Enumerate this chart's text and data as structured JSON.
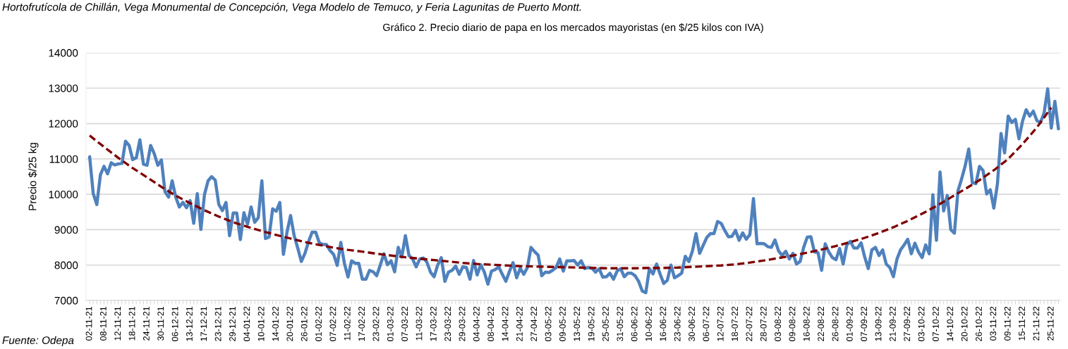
{
  "chart_data": {
    "type": "line",
    "title": "Gráfico 2. Precio diario de papa en los mercados mayoristas (en $/25 kilos con IVA)",
    "ylabel": "Precio $/25 kg",
    "annotations": [
      "Hortofrutícola de Chillán, Vega Monumental de Concepción, Vega Modelo de Temuco, y Feria Lagunitas de Puerto Montt.",
      "Fuente: Odepa"
    ],
    "categories": [
      "02-11-21",
      null,
      null,
      null,
      "08-11-21",
      null,
      null,
      null,
      "12-11-21",
      null,
      null,
      null,
      "18-11-21",
      null,
      null,
      null,
      "24-11-21",
      null,
      null,
      null,
      "30-11-21",
      null,
      null,
      null,
      "06-12-21",
      null,
      null,
      null,
      "13-12-21",
      null,
      null,
      null,
      "17-12-21",
      null,
      null,
      null,
      "23-12-21",
      null,
      null,
      null,
      "29-12-21",
      null,
      null,
      null,
      "04-01-22",
      null,
      null,
      null,
      "10-01-22",
      null,
      null,
      null,
      "14-01-22",
      null,
      null,
      null,
      "20-01-22",
      null,
      null,
      null,
      "26-01-22",
      null,
      null,
      null,
      "01-02-22",
      null,
      null,
      null,
      "07-02-22",
      null,
      null,
      null,
      "11-02-22",
      null,
      null,
      null,
      "17-02-22",
      null,
      null,
      null,
      "23-02-22",
      null,
      null,
      null,
      "01-03-22",
      null,
      null,
      null,
      "07-03-22",
      null,
      null,
      null,
      "11-03-22",
      null,
      null,
      null,
      "17-03-22",
      null,
      null,
      null,
      "23-03-22",
      null,
      null,
      null,
      "29-03-22",
      null,
      null,
      null,
      "04-04-22",
      null,
      null,
      null,
      "08-04-22",
      null,
      null,
      null,
      "14-04-22",
      null,
      null,
      null,
      "21-04-22",
      null,
      null,
      null,
      "27-04-22",
      null,
      null,
      null,
      "03-05-22",
      null,
      null,
      null,
      "09-05-22",
      null,
      null,
      null,
      "13-05-22",
      null,
      null,
      null,
      "19-05-22",
      null,
      null,
      null,
      "25-05-22",
      null,
      null,
      null,
      "31-05-22",
      null,
      null,
      null,
      "06-06-22",
      null,
      null,
      null,
      "10-06-22",
      null,
      null,
      null,
      "16-06-22",
      null,
      null,
      null,
      "23-06-22",
      null,
      null,
      null,
      "30-06-22",
      null,
      null,
      null,
      "06-07-22",
      null,
      null,
      null,
      "12-07-22",
      null,
      null,
      null,
      "18-07-22",
      null,
      null,
      null,
      "22-07-22",
      null,
      null,
      null,
      "28-07-22",
      null,
      null,
      null,
      "03-08-22",
      null,
      null,
      null,
      "09-08-22",
      null,
      null,
      null,
      "16-08-22",
      null,
      null,
      null,
      "22-08-22",
      null,
      null,
      null,
      "26-08-22",
      null,
      null,
      null,
      "01-09-22",
      null,
      null,
      null,
      "07-09-22",
      null,
      null,
      null,
      "13-09-22",
      null,
      null,
      null,
      "21-09-22",
      null,
      null,
      null,
      "27-09-22",
      null,
      null,
      null,
      "03-10-22",
      null,
      null,
      null,
      "07-10-22",
      null,
      null,
      null,
      "14-10-22",
      null,
      null,
      null,
      "20-10-22",
      null,
      null,
      null,
      "26-10-22",
      null,
      null,
      null,
      "03-11-22",
      null,
      null,
      null,
      "09-11-22",
      null,
      null,
      null,
      "15-11-22",
      null,
      null,
      null,
      "21-11-22",
      null,
      null,
      null,
      "25-11-22",
      null,
      null
    ],
    "series": [
      {
        "color": "#4f81bd",
        "line_style": "solid",
        "values": [
          11060,
          10020,
          9710,
          10550,
          10790,
          10580,
          10890,
          10830,
          10860,
          10870,
          11500,
          11380,
          10980,
          11030,
          11540,
          10850,
          10820,
          11380,
          11150,
          10820,
          10970,
          10070,
          9920,
          10380,
          9920,
          9640,
          9770,
          9620,
          9820,
          9180,
          10020,
          9010,
          9990,
          10380,
          10500,
          10400,
          9710,
          9540,
          9770,
          8830,
          9470,
          9470,
          8720,
          9480,
          9150,
          9640,
          9210,
          9340,
          10380,
          8750,
          8790,
          9590,
          9520,
          9770,
          8300,
          8930,
          9400,
          8830,
          8480,
          8100,
          8330,
          8660,
          8930,
          8930,
          8630,
          8580,
          8580,
          8410,
          8300,
          7990,
          8640,
          8050,
          7660,
          8120,
          8050,
          8050,
          7600,
          7600,
          7850,
          7810,
          7700,
          8000,
          8320,
          8010,
          8120,
          7810,
          8500,
          8230,
          8830,
          8270,
          8170,
          7950,
          8170,
          8200,
          8080,
          7800,
          7670,
          8000,
          8210,
          7540,
          7800,
          7850,
          7970,
          7740,
          7950,
          7930,
          7600,
          8130,
          7720,
          8010,
          7800,
          7460,
          7830,
          7870,
          7950,
          7740,
          7540,
          7820,
          8070,
          7640,
          7910,
          7740,
          7930,
          8500,
          8380,
          8280,
          7700,
          7800,
          7790,
          7850,
          7930,
          8170,
          7830,
          8120,
          8120,
          8130,
          8000,
          8120,
          7900,
          7930,
          7910,
          7800,
          7900,
          7660,
          7670,
          7770,
          7600,
          7830,
          7900,
          7670,
          7770,
          7770,
          7700,
          7540,
          7270,
          7220,
          7900,
          7750,
          8030,
          7740,
          7480,
          7570,
          8000,
          7640,
          7700,
          7770,
          8250,
          8100,
          8400,
          8890,
          8330,
          8560,
          8780,
          8890,
          8890,
          9230,
          9180,
          8980,
          8800,
          8810,
          8980,
          8700,
          8910,
          8730,
          8860,
          9880,
          8600,
          8610,
          8600,
          8520,
          8500,
          8710,
          8400,
          8270,
          8390,
          8170,
          8330,
          8030,
          8100,
          8500,
          8790,
          8800,
          8370,
          8350,
          7850,
          8600,
          8370,
          8210,
          8150,
          8470,
          8030,
          8570,
          8670,
          8480,
          8480,
          8630,
          8230,
          7900,
          8430,
          8500,
          8270,
          8430,
          8030,
          7930,
          7670,
          8170,
          8430,
          8570,
          8730,
          8320,
          8620,
          8370,
          8210,
          8570,
          8320,
          9990,
          8700,
          10630,
          9530,
          9970,
          9000,
          8900,
          10100,
          10430,
          10800,
          11280,
          10330,
          10300,
          10790,
          10670,
          10010,
          10130,
          9610,
          10300,
          11720,
          11170,
          12210,
          12030,
          12120,
          11570,
          12070,
          12390,
          12210,
          12350,
          12080,
          12030,
          12300,
          12980,
          11870,
          12630,
          11850
        ]
      },
      {
        "type": "line",
        "color": "#7f0000",
        "line_style": "dashed",
        "x": [
          "02-11-21",
          "08-11-21",
          "12-11-21",
          "18-11-21",
          "24-11-21",
          "30-11-21",
          "06-12-21",
          "13-12-21",
          "17-12-21",
          "23-12-21",
          "29-12-21",
          "04-01-22",
          "10-01-22",
          "14-01-22",
          "20-01-22",
          "26-01-22",
          "01-02-22",
          "07-02-22",
          "11-02-22",
          "17-02-22",
          "23-02-22",
          "01-03-22",
          "07-03-22",
          "11-03-22",
          "17-03-22",
          "23-03-22",
          "29-03-22",
          "04-04-22",
          "08-04-22",
          "14-04-22",
          "21-04-22",
          "27-04-22",
          "03-05-22",
          "09-05-22",
          "13-05-22",
          "19-05-22",
          "25-05-22",
          "31-05-22",
          "06-06-22",
          "10-06-22",
          "16-06-22",
          "23-06-22",
          "30-06-22",
          "06-07-22",
          "12-07-22",
          "18-07-22",
          "22-07-22",
          "28-07-22",
          "03-08-22",
          "09-08-22",
          "16-08-22",
          "22-08-22",
          "26-08-22",
          "01-09-22",
          "07-09-22",
          "13-09-22",
          "21-09-22",
          "27-09-22",
          "03-10-22",
          "07-10-22",
          "14-10-22",
          "20-10-22",
          "26-10-22",
          "03-11-22",
          "09-11-22",
          "15-11-22",
          "21-11-22",
          "25-11-22"
        ],
        "values": [
          11660,
          11340,
          11030,
          10740,
          10480,
          10210,
          9960,
          9750,
          9550,
          9370,
          9210,
          9080,
          8960,
          8850,
          8750,
          8650,
          8570,
          8490,
          8430,
          8380,
          8320,
          8270,
          8220,
          8180,
          8140,
          8100,
          8060,
          8030,
          8010,
          7990,
          7970,
          7960,
          7950,
          7940,
          7930,
          7920,
          7910,
          7910,
          7910,
          7920,
          7920,
          7930,
          7950,
          7970,
          7990,
          8020,
          8070,
          8130,
          8200,
          8270,
          8350,
          8440,
          8540,
          8650,
          8770,
          8910,
          9070,
          9250,
          9450,
          9670,
          9910,
          10150,
          10400,
          10680,
          11000,
          11420,
          11890,
          12450
        ]
      }
    ],
    "ylim": [
      7000,
      14000
    ],
    "yticks": [
      7000,
      8000,
      9000,
      10000,
      11000,
      12000,
      13000,
      14000
    ],
    "grid": "y",
    "legend": false,
    "marker": "none"
  }
}
